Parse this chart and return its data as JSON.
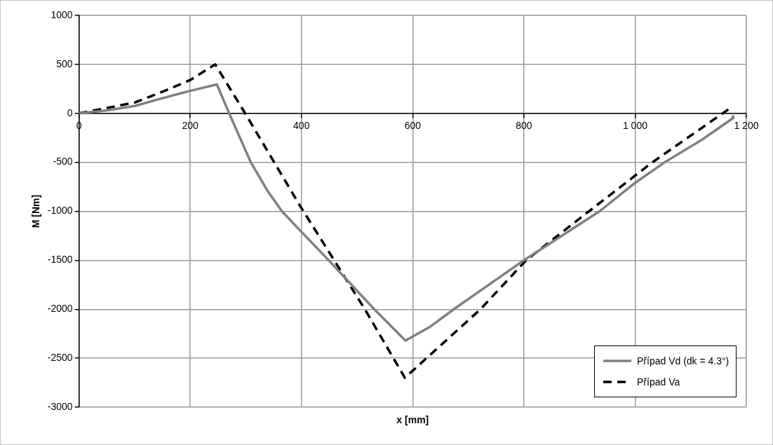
{
  "chart_data": {
    "type": "line",
    "xlabel": "x [mm]",
    "ylabel": "M [Nm]",
    "xlim": [
      0,
      1200
    ],
    "xticks": [
      0,
      200,
      400,
      600,
      800,
      {
        "value": 1000,
        "label": "1 000"
      },
      {
        "value": 1200,
        "label": "1 200"
      }
    ],
    "ylim": [
      -3000,
      1000
    ],
    "yticks": [
      -3000,
      -2500,
      -2000,
      -1500,
      -1000,
      -500,
      0,
      500,
      1000
    ],
    "grid": true,
    "legend": "bottom right",
    "marker": "none",
    "series": [
      {
        "name": "Případ Vd  (dk = 4.3°)",
        "color": "#808080",
        "line_style": "solid",
        "x": [
          0,
          50,
          100,
          150,
          200,
          248,
          270,
          309,
          340,
          365,
          400,
          449,
          531,
          587,
          631,
          674,
          800,
          936,
          1000,
          1053,
          1120,
          1177,
          1175
        ],
        "values": [
          0,
          30,
          75,
          155,
          230,
          295,
          0,
          -500,
          -800,
          -1000,
          -1210,
          -1500,
          -2000,
          -2320,
          -2180,
          -2000,
          -1500,
          -1000,
          -710,
          -500,
          -270,
          -45,
          -20
        ]
      },
      {
        "name": "Případ Va",
        "color": "#000000",
        "line_style": "dashed",
        "x": [
          0,
          100,
          150,
          200,
          245,
          302,
          397,
          514,
          586,
          722,
          804,
          917,
          1031,
          1170
        ],
        "values": [
          0,
          110,
          220,
          340,
          500,
          -30,
          -940,
          -2000,
          -2700,
          -2000,
          -1500,
          -1000,
          -500,
          50
        ]
      }
    ]
  }
}
